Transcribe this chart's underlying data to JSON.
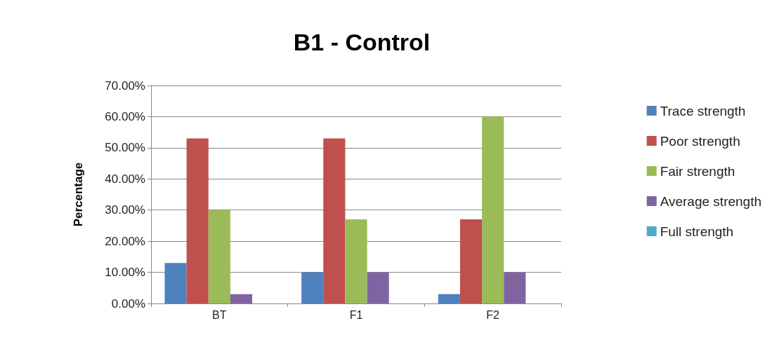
{
  "chart_data": {
    "type": "bar",
    "title": "B1 - Control",
    "ylabel": "Percentage",
    "categories": [
      "BT",
      "F1",
      "F2"
    ],
    "series": [
      {
        "name": "Trace strength",
        "color": "#4f81bd",
        "values": [
          13,
          10,
          3
        ]
      },
      {
        "name": "Poor strength",
        "color": "#c0504d",
        "values": [
          53,
          53,
          27
        ]
      },
      {
        "name": "Fair strength",
        "color": "#9bbb59",
        "values": [
          30,
          27,
          60
        ]
      },
      {
        "name": "Average strength",
        "color": "#8064a2",
        "values": [
          3,
          10,
          10
        ]
      },
      {
        "name": "Full strength",
        "color": "#4bacc6",
        "values": [
          0,
          0,
          0
        ]
      }
    ],
    "ylim": [
      0,
      70
    ],
    "yticks": [
      {
        "value": 0,
        "label": "0.00%"
      },
      {
        "value": 10,
        "label": "10.00%"
      },
      {
        "value": 20,
        "label": "20.00%"
      },
      {
        "value": 30,
        "label": "30.00%"
      },
      {
        "value": 40,
        "label": "40.00%"
      },
      {
        "value": 50,
        "label": "50.00%"
      },
      {
        "value": 60,
        "label": "60.00%"
      },
      {
        "value": 70,
        "label": "70.00%"
      }
    ],
    "grid": "y",
    "legend": "right"
  }
}
